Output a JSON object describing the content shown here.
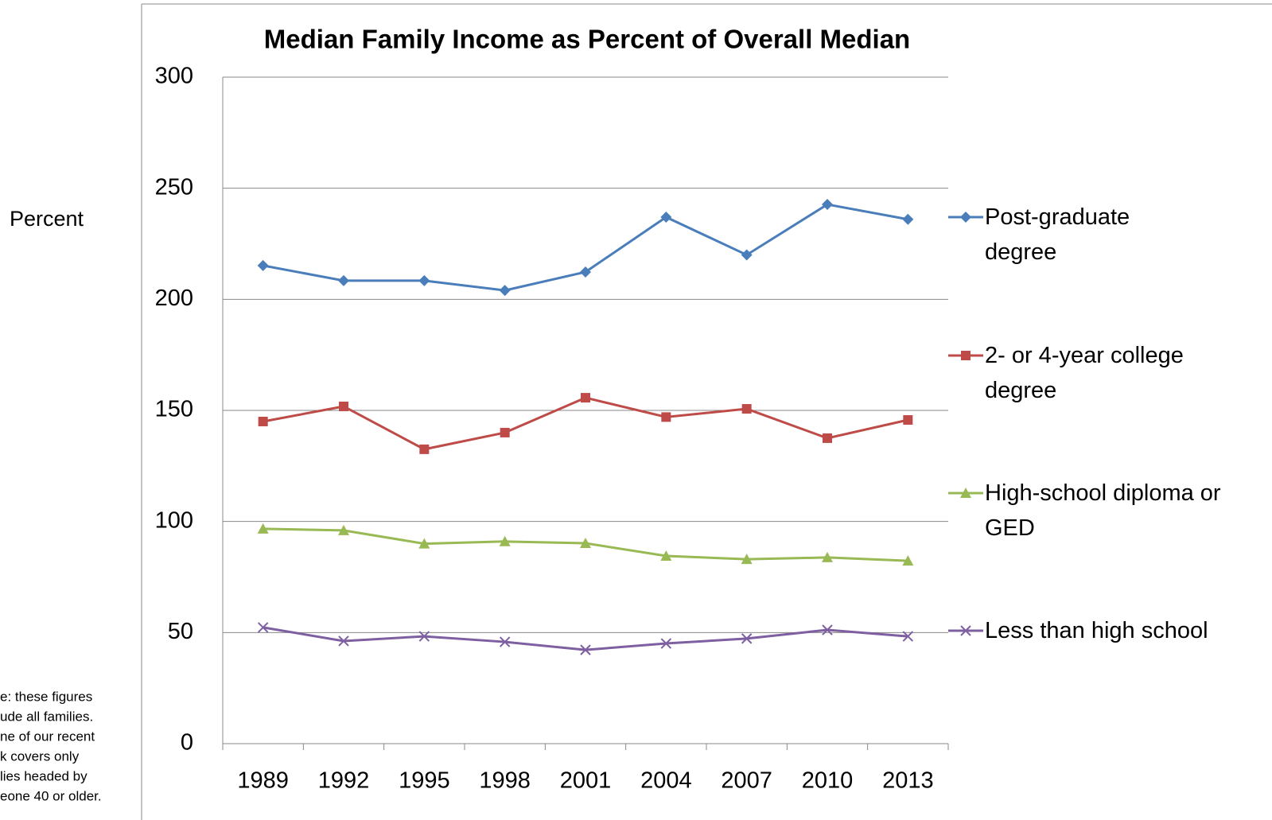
{
  "chart_data": {
    "type": "line",
    "title": "Median Family Income as Percent of Overall Median",
    "y_axis_label": "Percent",
    "note": [
      "e: these figures",
      "ude all families.",
      "ne of our recent",
      "k covers only",
      "lies headed by",
      "eone 40 or older."
    ],
    "categories": [
      "1989",
      "1992",
      "1995",
      "1998",
      "2001",
      "2004",
      "2007",
      "2010",
      "2013"
    ],
    "ylim": [
      0,
      300
    ],
    "yticks": [
      0,
      50,
      100,
      150,
      200,
      250,
      300
    ],
    "grid": true,
    "legend": "right",
    "series": [
      {
        "name": "Post-graduate degree",
        "color": "#4a7ebb",
        "marker": "diamond",
        "values": [
          215.2,
          208.4,
          208.4,
          204,
          212.3,
          237,
          220,
          242.7,
          236
        ]
      },
      {
        "name": "2- or 4-year college degree",
        "color": "#be4b48",
        "marker": "square",
        "values": [
          145,
          151.8,
          132.5,
          140,
          155.7,
          147,
          150.7,
          137.5,
          145.7
        ]
      },
      {
        "name": "High-school diploma or GED",
        "color": "#98b954",
        "marker": "triangle",
        "values": [
          96.7,
          96,
          90,
          91,
          90.2,
          84.5,
          83,
          83.8,
          82.3
        ]
      },
      {
        "name": "Less than high school",
        "color": "#7e5fa1",
        "marker": "x",
        "values": [
          52.3,
          46.2,
          48.3,
          45.8,
          42.2,
          45.1,
          47.3,
          51.2,
          48.3
        ]
      }
    ]
  }
}
